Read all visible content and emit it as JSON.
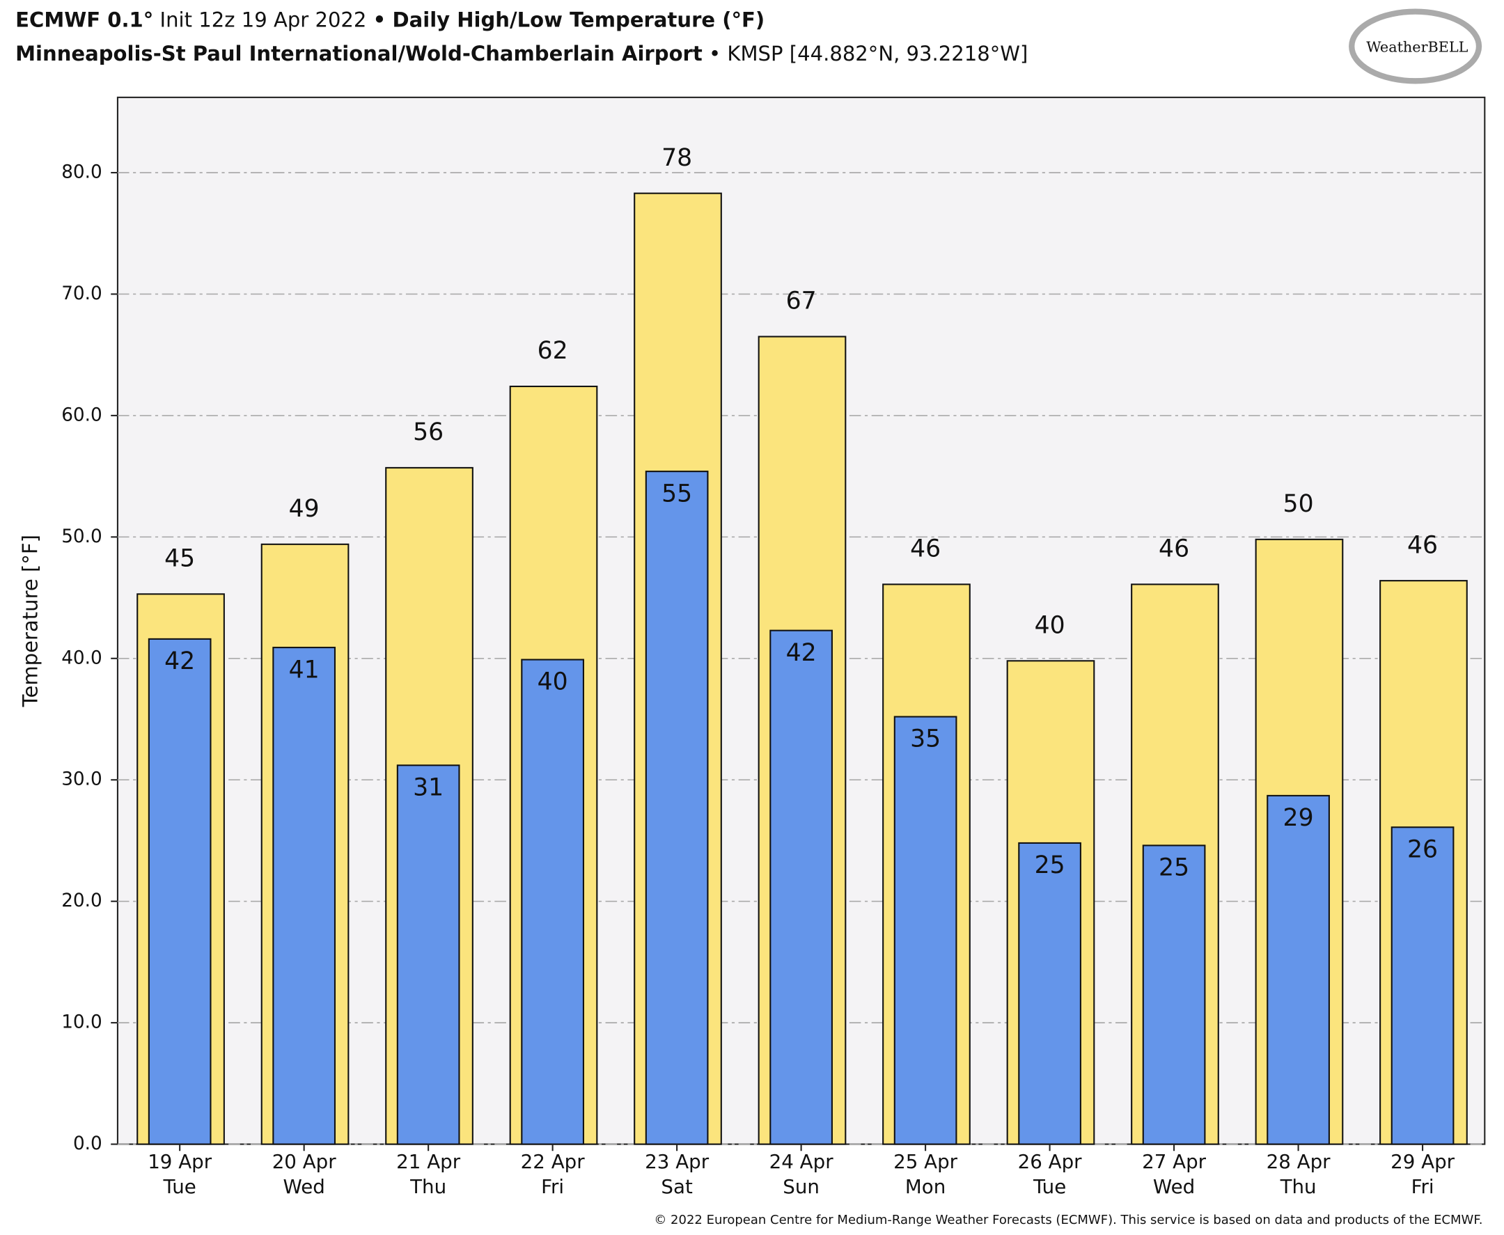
{
  "chart_data": {
    "type": "bar",
    "title": {
      "model": "ECMWF 0.1°",
      "init": "Init 12z 19 Apr 2022",
      "separator": "•",
      "product": "Daily High/Low Temperature (°F)"
    },
    "subtitle": {
      "station": "Minneapolis-St Paul International/Wold-Chamberlain Airport",
      "separator": "•",
      "location": "KMSP [44.882°N, 93.2218°W]"
    },
    "logo": "WeatherBELL",
    "y_label": "Temperature [°F]",
    "footer": "© 2022 European Centre for Medium-Range Weather Forecasts (ECMWF). This service is based on data and products of the ECMWF.",
    "categories": [
      "19 Apr",
      "20 Apr",
      "21 Apr",
      "22 Apr",
      "23 Apr",
      "24 Apr",
      "25 Apr",
      "26 Apr",
      "27 Apr",
      "28 Apr",
      "29 Apr"
    ],
    "weekdays": [
      "Tue",
      "Wed",
      "Thu",
      "Fri",
      "Sat",
      "Sun",
      "Mon",
      "Tue",
      "Wed",
      "Thu",
      "Fri"
    ],
    "series": [
      {
        "color": "#fbe47d",
        "values": [
          45.3,
          49.4,
          55.7,
          62.4,
          78.3,
          66.5,
          46.1,
          39.8,
          46.1,
          49.8,
          46.4
        ],
        "value_labels": [
          "45",
          "49",
          "56",
          "62",
          "78",
          "67",
          "46",
          "40",
          "46",
          "50",
          "46"
        ]
      },
      {
        "color": "#6495ea",
        "values": [
          41.6,
          40.9,
          31.2,
          39.9,
          55.4,
          42.3,
          35.2,
          24.8,
          24.6,
          28.7,
          26.1
        ],
        "value_labels": [
          "42",
          "41",
          "31",
          "40",
          "55",
          "42",
          "35",
          "25",
          "25",
          "29",
          "26"
        ]
      }
    ],
    "ylim": [
      0,
      86.2
    ],
    "yticks": [
      {
        "value": 0,
        "label": "0.0"
      },
      {
        "value": 10,
        "label": "10.0"
      },
      {
        "value": 20,
        "label": "20.0"
      },
      {
        "value": 30,
        "label": "30.0"
      },
      {
        "value": 40,
        "label": "40.0"
      },
      {
        "value": 50,
        "label": "50.0"
      },
      {
        "value": 60,
        "label": "60.0"
      },
      {
        "value": 70,
        "label": "70.0"
      },
      {
        "value": 80,
        "label": "80.0"
      }
    ],
    "grid": true
  }
}
